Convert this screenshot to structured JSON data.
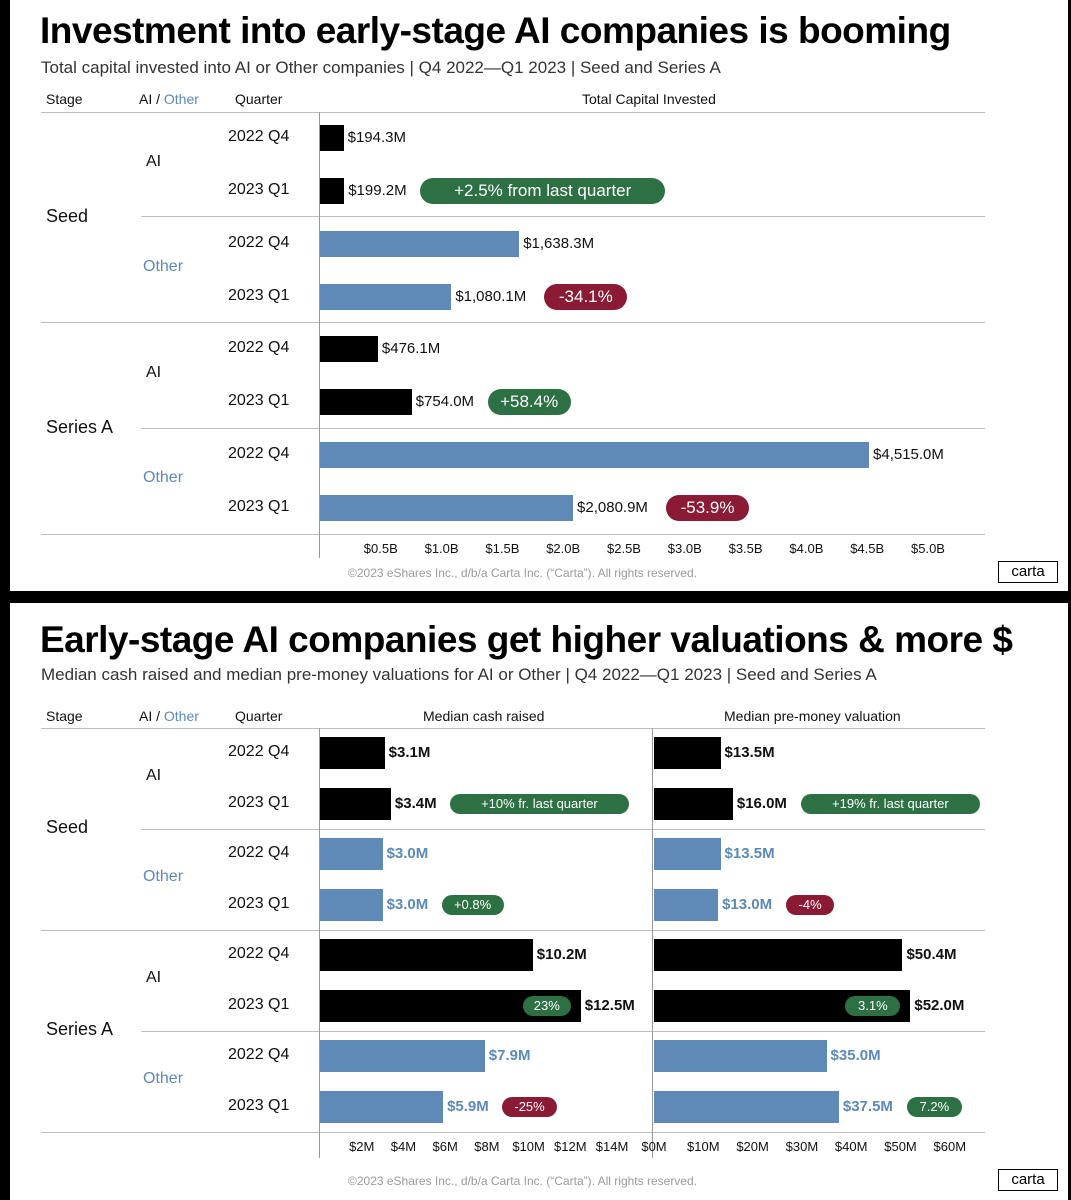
{
  "colors": {
    "ai_bar": "#000000",
    "other_bar": "#5f8ab7",
    "up": "#2c7043",
    "down": "#8b1a35",
    "other_text": "#5b8ab8"
  },
  "top": {
    "title": "Investment into early-stage AI companies is booming",
    "subtitle": "Total capital invested into AI or Other companies |  Q4 2022—Q1 2023  | Seed and Series A",
    "headers": {
      "stage": "Stage",
      "ai": "AI /",
      "other": "Other",
      "quarter": "Quarter",
      "total": "Total Capital Invested"
    },
    "footer": "©2023 eShares Inc., d/b/a Carta Inc. (“Carta”). All rights reserved.",
    "logo": "carta"
  },
  "bottom": {
    "title": "Early-stage AI companies get higher valuations & more $",
    "subtitle": "Median cash raised and median pre-money valuations for AI or Other |  Q4 2022—Q1 2023  | Seed and Series A",
    "headers": {
      "stage": "Stage",
      "ai": "AI /",
      "other": "Other",
      "quarter": "Quarter",
      "cash": "Median cash raised",
      "valuation": "Median pre-money valuation"
    },
    "footer": "©2023 eShares Inc., d/b/a Carta Inc. (“Carta”). All rights reserved.",
    "logo": "carta"
  },
  "chart_data": [
    {
      "type": "bar",
      "orientation": "horizontal",
      "title": "Investment into early-stage AI companies is booming",
      "ylabel": "Total Capital Invested",
      "xunit": "$M",
      "xlim": [
        0,
        5250
      ],
      "xticks": [
        500,
        1000,
        1500,
        2000,
        2500,
        3000,
        3500,
        4000,
        4500,
        5000
      ],
      "xtick_labels": [
        "$0.5B",
        "$1.0B",
        "$1.5B",
        "$2.0B",
        "$2.5B",
        "$3.0B",
        "$3.5B",
        "$4.0B",
        "$4.5B",
        "$5.0B"
      ],
      "rows": [
        {
          "stage": "Seed",
          "cat": "AI",
          "quarter": "2022 Q4",
          "value": 194.3,
          "label": "$194.3M",
          "badge": null
        },
        {
          "stage": "Seed",
          "cat": "AI",
          "quarter": "2023 Q1",
          "value": 199.2,
          "label": "$199.2M",
          "badge": {
            "text": "+2.5% from last quarter",
            "dir": "up"
          }
        },
        {
          "stage": "Seed",
          "cat": "Other",
          "quarter": "2022 Q4",
          "value": 1638.3,
          "label": "$1,638.3M",
          "badge": null
        },
        {
          "stage": "Seed",
          "cat": "Other",
          "quarter": "2023 Q1",
          "value": 1080.1,
          "label": "$1,080.1M",
          "badge": {
            "text": "-34.1%",
            "dir": "down"
          }
        },
        {
          "stage": "Series A",
          "cat": "AI",
          "quarter": "2022 Q4",
          "value": 476.1,
          "label": "$476.1M",
          "badge": null
        },
        {
          "stage": "Series A",
          "cat": "AI",
          "quarter": "2023 Q1",
          "value": 754.0,
          "label": "$754.0M",
          "badge": {
            "text": "+58.4%",
            "dir": "up"
          }
        },
        {
          "stage": "Series A",
          "cat": "Other",
          "quarter": "2022 Q4",
          "value": 4515.0,
          "label": "$4,515.0M",
          "badge": null
        },
        {
          "stage": "Series A",
          "cat": "Other",
          "quarter": "2023 Q1",
          "value": 2080.9,
          "label": "$2,080.9M",
          "badge": {
            "text": "-53.9%",
            "dir": "down"
          }
        }
      ]
    },
    {
      "type": "bar",
      "orientation": "horizontal",
      "title": "Median cash raised",
      "xunit": "$M",
      "xlim": [
        0,
        15
      ],
      "xticks": [
        2,
        4,
        6,
        8,
        10,
        12,
        14
      ],
      "xtick_labels": [
        "$2M",
        "$4M",
        "$6M",
        "$8M",
        "$10M",
        "$12M",
        "$14M"
      ],
      "rows": [
        {
          "stage": "Seed",
          "cat": "AI",
          "quarter": "2022 Q4",
          "value": 3.1,
          "label": "$3.1M",
          "badge": null
        },
        {
          "stage": "Seed",
          "cat": "AI",
          "quarter": "2023 Q1",
          "value": 3.4,
          "label": "$3.4M",
          "badge": {
            "text": "+10% fr. last quarter",
            "dir": "up"
          }
        },
        {
          "stage": "Seed",
          "cat": "Other",
          "quarter": "2022 Q4",
          "value": 3.0,
          "label": "$3.0M",
          "badge": null
        },
        {
          "stage": "Seed",
          "cat": "Other",
          "quarter": "2023 Q1",
          "value": 3.0,
          "label": "$3.0M",
          "badge": {
            "text": "+0.8%",
            "dir": "up"
          }
        },
        {
          "stage": "Series A",
          "cat": "AI",
          "quarter": "2022 Q4",
          "value": 10.2,
          "label": "$10.2M",
          "badge": null
        },
        {
          "stage": "Series A",
          "cat": "AI",
          "quarter": "2023 Q1",
          "value": 12.5,
          "label": "$12.5M",
          "badge": {
            "text": "23%",
            "dir": "up",
            "inside": true
          }
        },
        {
          "stage": "Series A",
          "cat": "Other",
          "quarter": "2022 Q4",
          "value": 7.9,
          "label": "$7.9M",
          "badge": null
        },
        {
          "stage": "Series A",
          "cat": "Other",
          "quarter": "2023 Q1",
          "value": 5.9,
          "label": "$5.9M",
          "badge": {
            "text": "-25%",
            "dir": "down"
          }
        }
      ]
    },
    {
      "type": "bar",
      "orientation": "horizontal",
      "title": "Median pre-money valuation",
      "xunit": "$M",
      "xlim": [
        0,
        65
      ],
      "xticks": [
        0,
        10,
        20,
        30,
        40,
        50,
        60
      ],
      "xtick_labels": [
        "$0M",
        "$10M",
        "$20M",
        "$30M",
        "$40M",
        "$50M",
        "$60M"
      ],
      "rows": [
        {
          "stage": "Seed",
          "cat": "AI",
          "quarter": "2022 Q4",
          "value": 13.5,
          "label": "$13.5M",
          "badge": null
        },
        {
          "stage": "Seed",
          "cat": "AI",
          "quarter": "2023 Q1",
          "value": 16.0,
          "label": "$16.0M",
          "badge": {
            "text": "+19% fr. last quarter",
            "dir": "up"
          }
        },
        {
          "stage": "Seed",
          "cat": "Other",
          "quarter": "2022 Q4",
          "value": 13.5,
          "label": "$13.5M",
          "badge": null
        },
        {
          "stage": "Seed",
          "cat": "Other",
          "quarter": "2023 Q1",
          "value": 13.0,
          "label": "$13.0M",
          "badge": {
            "text": "-4%",
            "dir": "down"
          }
        },
        {
          "stage": "Series A",
          "cat": "AI",
          "quarter": "2022 Q4",
          "value": 50.4,
          "label": "$50.4M",
          "badge": null
        },
        {
          "stage": "Series A",
          "cat": "AI",
          "quarter": "2023 Q1",
          "value": 52.0,
          "label": "$52.0M",
          "badge": {
            "text": "3.1%",
            "dir": "up",
            "inside": true
          }
        },
        {
          "stage": "Series A",
          "cat": "Other",
          "quarter": "2022 Q4",
          "value": 35.0,
          "label": "$35.0M",
          "badge": null
        },
        {
          "stage": "Series A",
          "cat": "Other",
          "quarter": "2023 Q1",
          "value": 37.5,
          "label": "$37.5M",
          "badge": {
            "text": "7.2%",
            "dir": "up"
          }
        }
      ]
    }
  ]
}
